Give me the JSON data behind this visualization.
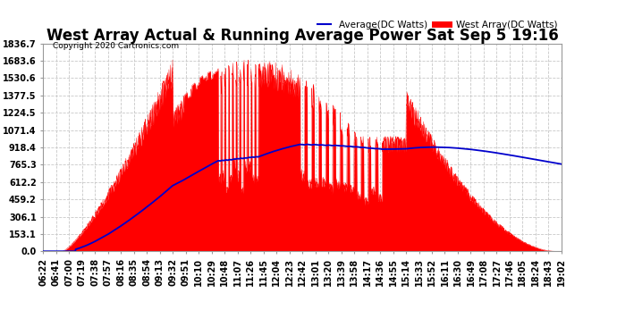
{
  "title": "West Array Actual & Running Average Power Sat Sep 5 19:16",
  "copyright": "Copyright 2020 Cartronics.com",
  "legend_average": "Average(DC Watts)",
  "legend_west": "West Array(DC Watts)",
  "ylabel_values": [
    0.0,
    153.1,
    306.1,
    459.2,
    612.2,
    765.3,
    918.4,
    1071.4,
    1224.5,
    1377.5,
    1530.6,
    1683.6,
    1836.7
  ],
  "ylim": [
    0,
    1836.7
  ],
  "background_color": "#ffffff",
  "plot_bg_color": "#ffffff",
  "grid_color": "#c8c8c8",
  "area_color": "#ff0000",
  "average_color": "#0000cc",
  "title_fontsize": 12,
  "tick_fontsize": 7,
  "xtick_labels": [
    "06:22",
    "06:41",
    "07:00",
    "07:19",
    "07:38",
    "07:57",
    "08:16",
    "08:35",
    "08:54",
    "09:13",
    "09:32",
    "09:51",
    "10:10",
    "10:29",
    "10:48",
    "11:07",
    "11:26",
    "11:45",
    "12:04",
    "12:23",
    "12:42",
    "13:01",
    "13:20",
    "13:39",
    "13:58",
    "14:17",
    "14:36",
    "14:55",
    "15:14",
    "15:33",
    "15:52",
    "16:11",
    "16:30",
    "16:49",
    "17:08",
    "17:27",
    "17:46",
    "18:05",
    "18:24",
    "18:43",
    "19:02"
  ],
  "n_ticks": 41
}
